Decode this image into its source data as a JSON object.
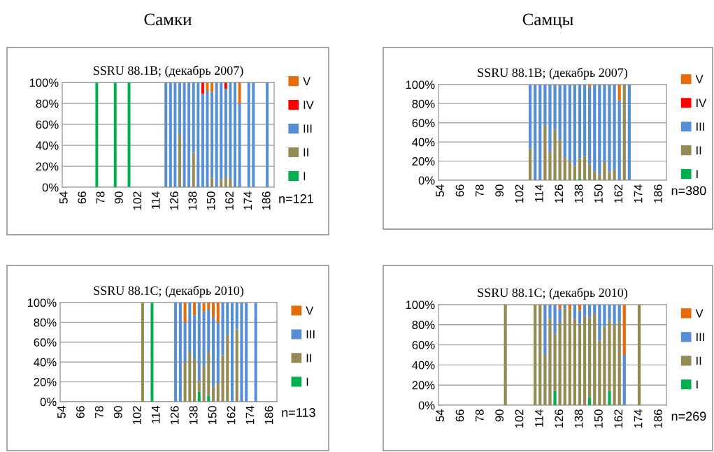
{
  "chart_data": [
    {
      "type": "bar",
      "stacked": true,
      "title": "SSRU 88.1B; (декабрь 2007)",
      "subtitle": "Самки",
      "annotations": [
        "n=121"
      ],
      "categories": [
        "54",
        null,
        null,
        null,
        "66",
        null,
        null,
        null,
        "78",
        null,
        null,
        null,
        "90",
        null,
        null,
        null,
        "102",
        null,
        null,
        null,
        "114",
        null,
        null,
        null,
        "126",
        null,
        null,
        null,
        "138",
        null,
        null,
        null,
        "150",
        null,
        null,
        null,
        "162",
        null,
        null,
        null,
        "174",
        null,
        null,
        null,
        "186",
        null
      ],
      "ylim": [
        0,
        100
      ],
      "yticks": [
        {
          "value": 0,
          "label": "0%"
        },
        {
          "value": 20,
          "label": "20%"
        },
        {
          "value": 40,
          "label": "40%"
        },
        {
          "value": 60,
          "label": "60%"
        },
        {
          "value": 80,
          "label": "80%"
        },
        {
          "value": 100,
          "label": "100%"
        }
      ],
      "grid": "y",
      "legend": "right",
      "series": [
        {
          "name": "I",
          "color": "#00b050",
          "values": [
            null,
            null,
            null,
            null,
            null,
            null,
            null,
            100,
            null,
            null,
            null,
            100,
            null,
            null,
            100,
            null,
            null,
            null,
            null,
            null,
            null,
            null,
            null,
            null,
            null,
            null,
            null,
            null,
            null,
            null,
            null,
            null,
            null,
            null,
            null,
            null,
            null,
            null,
            null,
            null,
            null,
            null,
            null,
            null,
            null,
            null
          ]
        },
        {
          "name": "II",
          "color": "#948a54",
          "values": [
            null,
            null,
            null,
            null,
            null,
            null,
            null,
            null,
            null,
            null,
            null,
            null,
            null,
            null,
            null,
            null,
            null,
            null,
            null,
            null,
            null,
            null,
            null,
            null,
            null,
            50,
            null,
            null,
            33,
            null,
            null,
            null,
            9,
            null,
            7,
            10,
            8,
            null,
            null,
            null,
            null,
            null,
            null,
            null,
            null,
            null
          ]
        },
        {
          "name": "III",
          "color": "#558ed5",
          "values": [
            null,
            null,
            null,
            null,
            null,
            null,
            null,
            null,
            null,
            null,
            null,
            null,
            null,
            null,
            null,
            null,
            null,
            null,
            null,
            null,
            null,
            null,
            100,
            100,
            100,
            50,
            100,
            100,
            67,
            100,
            89,
            92,
            82,
            100,
            93,
            84,
            92,
            100,
            80,
            null,
            100,
            100,
            null,
            null,
            100,
            null
          ]
        },
        {
          "name": "IV",
          "color": "#ff0000",
          "values": [
            null,
            null,
            null,
            null,
            null,
            null,
            null,
            null,
            null,
            null,
            null,
            null,
            null,
            null,
            null,
            null,
            null,
            null,
            null,
            null,
            null,
            null,
            null,
            null,
            null,
            null,
            null,
            null,
            null,
            null,
            11,
            null,
            null,
            null,
            null,
            6,
            null,
            null,
            null,
            null,
            null,
            null,
            null,
            null,
            null,
            null
          ]
        },
        {
          "name": "V",
          "color": "#e46c0a",
          "values": [
            null,
            null,
            null,
            null,
            null,
            null,
            null,
            null,
            null,
            null,
            null,
            null,
            null,
            null,
            null,
            null,
            null,
            null,
            null,
            null,
            null,
            null,
            null,
            null,
            null,
            null,
            null,
            null,
            null,
            null,
            null,
            8,
            9,
            null,
            null,
            null,
            null,
            null,
            20,
            null,
            null,
            null,
            null,
            null,
            null,
            null
          ]
        }
      ]
    },
    {
      "type": "bar",
      "stacked": true,
      "title": "SSRU 88.1B; (декабрь 2007)",
      "subtitle": "Самцы",
      "annotations": [
        "n=380"
      ],
      "categories": [
        "54",
        null,
        null,
        null,
        "66",
        null,
        null,
        null,
        "78",
        null,
        null,
        null,
        "90",
        null,
        null,
        null,
        "102",
        null,
        null,
        null,
        "114",
        null,
        null,
        null,
        "126",
        null,
        null,
        null,
        "138",
        null,
        null,
        null,
        "150",
        null,
        null,
        null,
        "162",
        null,
        null,
        null,
        "174",
        null,
        null,
        null,
        "186",
        null
      ],
      "ylim": [
        0,
        100
      ],
      "yticks": [
        {
          "value": 0,
          "label": "0%"
        },
        {
          "value": 20,
          "label": "20%"
        },
        {
          "value": 40,
          "label": "40%"
        },
        {
          "value": 60,
          "label": "60%"
        },
        {
          "value": 80,
          "label": "80%"
        },
        {
          "value": 100,
          "label": "100%"
        }
      ],
      "grid": "y",
      "legend": "right",
      "series": [
        {
          "name": "I",
          "color": "#00b050",
          "values": [
            null,
            null,
            null,
            null,
            null,
            null,
            null,
            null,
            null,
            null,
            null,
            null,
            null,
            null,
            null,
            null,
            null,
            null,
            null,
            null,
            null,
            null,
            null,
            null,
            null,
            null,
            null,
            null,
            2,
            null,
            null,
            null,
            null,
            null,
            null,
            null,
            null,
            null,
            null,
            null,
            null,
            null,
            null,
            null,
            null,
            null
          ]
        },
        {
          "name": "II",
          "color": "#948a54",
          "values": [
            null,
            null,
            null,
            null,
            null,
            null,
            null,
            null,
            null,
            null,
            null,
            null,
            null,
            null,
            null,
            null,
            null,
            null,
            33,
            null,
            null,
            57,
            30,
            53,
            42,
            24,
            20,
            15,
            21,
            25,
            17,
            9,
            6,
            19,
            9,
            11,
            null,
            100,
            null,
            null,
            null,
            null,
            null,
            null,
            null,
            null
          ]
        },
        {
          "name": "III",
          "color": "#558ed5",
          "values": [
            null,
            null,
            null,
            null,
            null,
            null,
            null,
            null,
            null,
            null,
            null,
            null,
            null,
            null,
            null,
            null,
            null,
            null,
            67,
            100,
            100,
            43,
            70,
            47,
            58,
            76,
            80,
            85,
            77,
            75,
            81,
            91,
            94,
            81,
            91,
            89,
            83,
            null,
            100,
            null,
            null,
            null,
            null,
            null,
            null,
            null
          ]
        },
        {
          "name": "IV",
          "color": "#ff0000",
          "values": [
            null,
            null,
            null,
            null,
            null,
            null,
            null,
            null,
            null,
            null,
            null,
            null,
            null,
            null,
            null,
            null,
            null,
            null,
            null,
            null,
            null,
            null,
            null,
            null,
            null,
            null,
            null,
            null,
            null,
            null,
            null,
            null,
            null,
            null,
            null,
            null,
            null,
            null,
            null,
            null,
            null,
            null,
            null,
            null,
            null,
            null
          ]
        },
        {
          "name": "V",
          "color": "#e46c0a",
          "values": [
            null,
            null,
            null,
            null,
            null,
            null,
            null,
            null,
            null,
            null,
            null,
            null,
            null,
            null,
            null,
            null,
            null,
            null,
            null,
            null,
            null,
            null,
            null,
            null,
            null,
            null,
            null,
            null,
            null,
            null,
            2,
            null,
            null,
            null,
            null,
            null,
            17,
            null,
            null,
            null,
            null,
            null,
            null,
            null,
            null,
            null
          ]
        }
      ]
    },
    {
      "type": "bar",
      "stacked": true,
      "title": "SSRU 88.1C; (декабрь 2010)",
      "annotations": [
        "n=113"
      ],
      "categories": [
        "54",
        null,
        null,
        null,
        "66",
        null,
        null,
        null,
        "78",
        null,
        null,
        null,
        "90",
        null,
        null,
        null,
        "102",
        null,
        null,
        null,
        "114",
        null,
        null,
        null,
        "126",
        null,
        null,
        null,
        "138",
        null,
        null,
        null,
        "150",
        null,
        null,
        null,
        "162",
        null,
        null,
        null,
        "174",
        null,
        null,
        null,
        "186",
        null
      ],
      "ylim": [
        0,
        100
      ],
      "yticks": [
        {
          "value": 0,
          "label": "0%"
        },
        {
          "value": 20,
          "label": "20%"
        },
        {
          "value": 40,
          "label": "40%"
        },
        {
          "value": 60,
          "label": "60%"
        },
        {
          "value": 80,
          "label": "80%"
        },
        {
          "value": 100,
          "label": "100%"
        }
      ],
      "grid": "y",
      "legend": "right",
      "series": [
        {
          "name": "I",
          "color": "#00b050",
          "values": [
            null,
            null,
            null,
            null,
            null,
            null,
            null,
            null,
            null,
            null,
            null,
            null,
            null,
            null,
            null,
            null,
            null,
            null,
            null,
            100,
            null,
            null,
            null,
            null,
            null,
            null,
            null,
            null,
            null,
            10,
            null,
            6,
            null,
            null,
            null,
            null,
            null,
            null,
            null,
            null,
            null,
            null,
            null,
            null,
            null,
            null
          ]
        },
        {
          "name": "II",
          "color": "#948a54",
          "values": [
            null,
            null,
            null,
            null,
            null,
            null,
            null,
            null,
            null,
            null,
            null,
            null,
            null,
            null,
            null,
            null,
            null,
            100,
            null,
            null,
            null,
            null,
            null,
            null,
            null,
            null,
            40,
            50,
            43,
            11,
            36,
            44,
            15,
            19,
            47,
            67,
            null,
            73,
            null,
            null,
            null,
            null,
            null,
            null,
            null,
            null
          ]
        },
        {
          "name": "III",
          "color": "#558ed5",
          "values": [
            null,
            null,
            null,
            null,
            null,
            null,
            null,
            null,
            null,
            null,
            null,
            null,
            null,
            null,
            null,
            null,
            null,
            null,
            null,
            null,
            null,
            null,
            null,
            null,
            100,
            100,
            40,
            50,
            44,
            79,
            55,
            43,
            70,
            61,
            53,
            33,
            100,
            27,
            100,
            100,
            null,
            100,
            null,
            null,
            null,
            null
          ]
        },
        {
          "name": "V",
          "color": "#e46c0a",
          "values": [
            null,
            null,
            null,
            null,
            null,
            null,
            null,
            null,
            null,
            null,
            null,
            null,
            null,
            null,
            null,
            null,
            null,
            null,
            null,
            null,
            null,
            null,
            null,
            null,
            null,
            null,
            20,
            null,
            13,
            null,
            9,
            7,
            15,
            20,
            null,
            null,
            null,
            null,
            null,
            null,
            null,
            null,
            null,
            null,
            null,
            null
          ]
        }
      ]
    },
    {
      "type": "bar",
      "stacked": true,
      "title": "SSRU 88.1C; (декабрь 2010)",
      "annotations": [
        "n=269"
      ],
      "categories": [
        "54",
        null,
        null,
        null,
        "66",
        null,
        null,
        null,
        "78",
        null,
        null,
        null,
        "90",
        null,
        null,
        null,
        "102",
        null,
        null,
        null,
        "114",
        null,
        null,
        null,
        "126",
        null,
        null,
        null,
        "138",
        null,
        null,
        null,
        "150",
        null,
        null,
        null,
        "162",
        null,
        null,
        null,
        "174",
        null,
        null,
        null,
        "186",
        null
      ],
      "ylim": [
        0,
        100
      ],
      "yticks": [
        {
          "value": 0,
          "label": "0%"
        },
        {
          "value": 20,
          "label": "20%"
        },
        {
          "value": 40,
          "label": "40%"
        },
        {
          "value": 60,
          "label": "60%"
        },
        {
          "value": 80,
          "label": "80%"
        },
        {
          "value": 100,
          "label": "100%"
        }
      ],
      "grid": "y",
      "legend": "right",
      "series": [
        {
          "name": "I",
          "color": "#00b050",
          "values": [
            null,
            null,
            null,
            null,
            null,
            null,
            null,
            null,
            null,
            null,
            null,
            null,
            null,
            null,
            null,
            null,
            null,
            null,
            null,
            null,
            null,
            null,
            null,
            14,
            null,
            null,
            null,
            null,
            null,
            null,
            8,
            null,
            null,
            null,
            14,
            null,
            null,
            null,
            null,
            null,
            null,
            null,
            null,
            null,
            null,
            null
          ]
        },
        {
          "name": "II",
          "color": "#948a54",
          "values": [
            null,
            null,
            null,
            null,
            null,
            null,
            null,
            null,
            null,
            null,
            null,
            null,
            null,
            100,
            null,
            null,
            null,
            null,
            null,
            100,
            100,
            50,
            86,
            57,
            82,
            96,
            95,
            86,
            81,
            89,
            79,
            91,
            64,
            78,
            71,
            80,
            83,
            null,
            null,
            null,
            100,
            null,
            null,
            null,
            null,
            null
          ]
        },
        {
          "name": "III",
          "color": "#558ed5",
          "values": [
            null,
            null,
            null,
            null,
            null,
            null,
            null,
            null,
            null,
            null,
            null,
            null,
            null,
            null,
            null,
            null,
            null,
            null,
            null,
            null,
            null,
            50,
            14,
            29,
            14,
            4,
            null,
            14,
            13,
            11,
            13,
            9,
            36,
            22,
            15,
            20,
            17,
            50,
            null,
            null,
            null,
            null,
            null,
            null,
            null,
            null
          ]
        },
        {
          "name": "V",
          "color": "#e46c0a",
          "values": [
            null,
            null,
            null,
            null,
            null,
            null,
            null,
            null,
            null,
            null,
            null,
            null,
            null,
            null,
            null,
            null,
            null,
            null,
            null,
            null,
            null,
            null,
            null,
            null,
            4,
            null,
            5,
            null,
            6,
            null,
            null,
            null,
            null,
            null,
            null,
            null,
            null,
            50,
            null,
            null,
            null,
            null,
            null,
            null,
            null,
            null
          ]
        }
      ]
    }
  ]
}
